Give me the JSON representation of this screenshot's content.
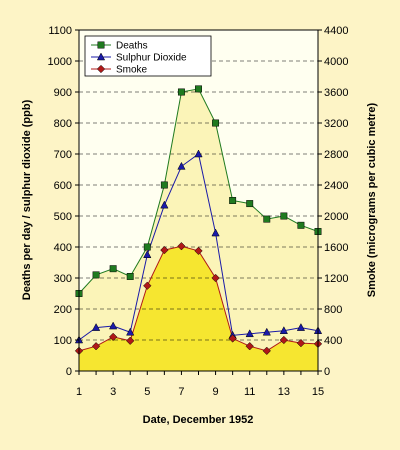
{
  "chart_data": {
    "type": "line",
    "title": "",
    "xlabel": "Date, December 1952",
    "ylabel": "Deaths per day / sulphur dioxide (ppb)",
    "y2label": "Smoke (micrograms per cubic metre)",
    "x": [
      1,
      2,
      3,
      4,
      5,
      6,
      7,
      8,
      9,
      10,
      11,
      12,
      13,
      14,
      15
    ],
    "x_ticks": [
      "1",
      "3",
      "5",
      "7",
      "9",
      "11",
      "13",
      "15"
    ],
    "ylim": [
      0,
      1100
    ],
    "y_ticks": [
      "0",
      "100",
      "200",
      "300",
      "400",
      "500",
      "600",
      "700",
      "800",
      "900",
      "1000",
      "1100"
    ],
    "y2lim": [
      0,
      4400
    ],
    "y2_ticks": [
      "0",
      "400",
      "800",
      "1200",
      "1600",
      "2000",
      "2400",
      "2800",
      "3200",
      "3600",
      "4000",
      "4400"
    ],
    "grid": "horizontal dashed",
    "legend_position": "top-left",
    "series": [
      {
        "name": "Deaths",
        "axis": "left",
        "marker": "square",
        "color": "#1f7a1f",
        "values": [
          250,
          310,
          330,
          305,
          400,
          600,
          900,
          910,
          800,
          550,
          540,
          490,
          500,
          470,
          450
        ]
      },
      {
        "name": "Sulphur Dioxide",
        "axis": "left",
        "marker": "triangle",
        "color": "#1a1aa8",
        "values": [
          100,
          140,
          145,
          125,
          375,
          535,
          660,
          700,
          445,
          115,
          120,
          125,
          130,
          140,
          130
        ]
      },
      {
        "name": "Smoke",
        "axis": "right",
        "marker": "diamond",
        "color": "#b01818",
        "values": [
          260,
          320,
          440,
          390,
          1100,
          1560,
          1610,
          1550,
          1200,
          420,
          320,
          260,
          400,
          360,
          350
        ]
      }
    ],
    "colors": {
      "background": "#fdf4c6",
      "plot_background": "#fffff0",
      "deaths_fill": "#fbf4b8",
      "smoke_fill": "#f6e630",
      "grid": "#000000"
    }
  }
}
